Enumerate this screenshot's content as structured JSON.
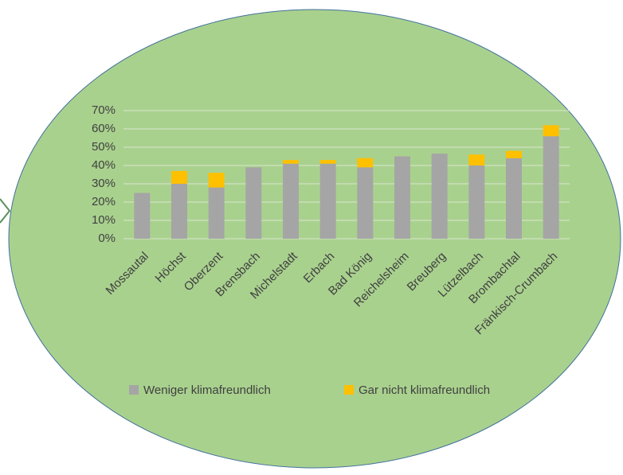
{
  "chart_data": {
    "type": "stacked_bar",
    "categories": [
      "Mossautal",
      "Höchst",
      "Oberzent",
      "Brensbach",
      "Michelstadt",
      "Erbach",
      "Bad König",
      "Reichelsheim",
      "Breuberg",
      "Lützelbach",
      "Brombachtal",
      "Fränkisch-Crumbach"
    ],
    "series": [
      {
        "name": "Weniger klimafreundlich",
        "color": "#a5a5a5",
        "values": [
          25,
          30,
          28,
          39,
          41,
          41,
          39,
          45,
          46.5,
          40,
          44,
          56
        ]
      },
      {
        "name": "Gar nicht klimafreundlich",
        "color": "#ffc000",
        "values": [
          0,
          7,
          8,
          0,
          2,
          2,
          5,
          0,
          0,
          6,
          4,
          6
        ]
      }
    ],
    "ylim": [
      0,
      70
    ],
    "yticks": [
      {
        "value": 0,
        "label": "0%"
      },
      {
        "value": 10,
        "label": "10%"
      },
      {
        "value": 20,
        "label": "20%"
      },
      {
        "value": 30,
        "label": "30%"
      },
      {
        "value": 40,
        "label": "40%"
      },
      {
        "value": 50,
        "label": "50%"
      },
      {
        "value": 60,
        "label": "60%"
      },
      {
        "value": 70,
        "label": "70%"
      }
    ],
    "grid": true,
    "legend": "bottom",
    "background": "#a9d18e"
  }
}
